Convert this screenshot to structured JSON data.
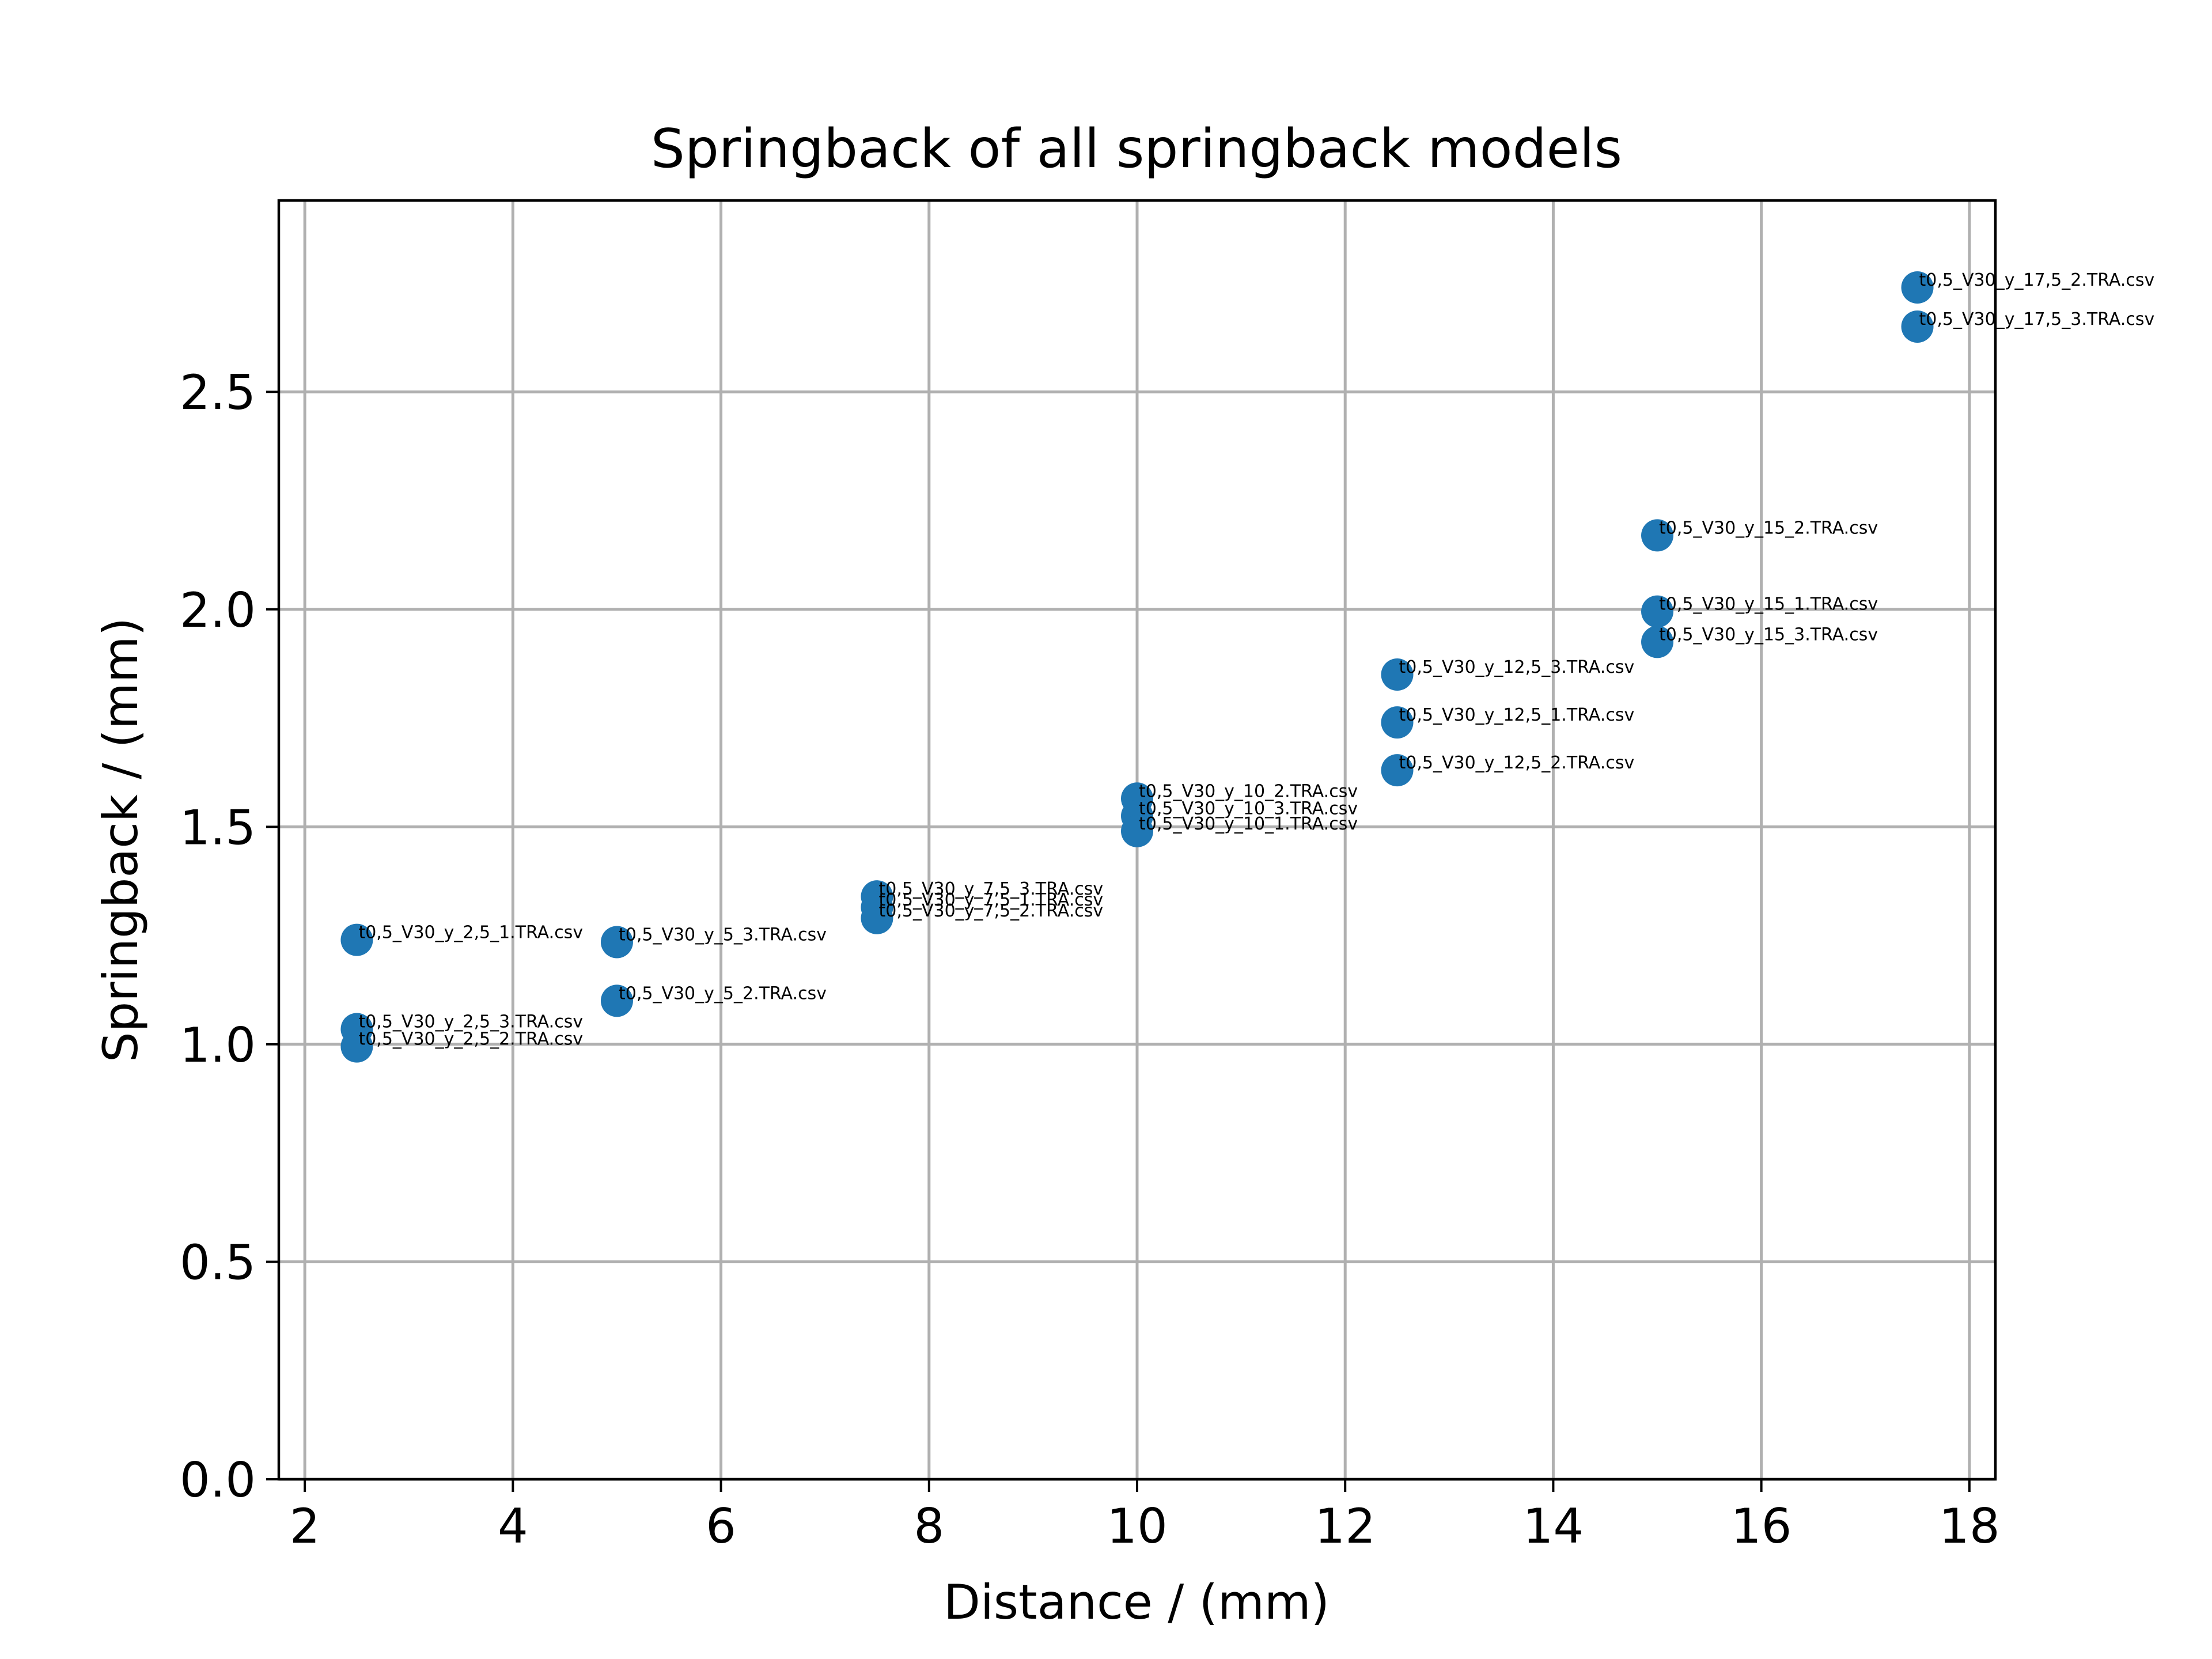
{
  "chart_data": {
    "type": "scatter",
    "title": "Springback of all springback models",
    "xlabel": "Distance / (mm)",
    "ylabel": "Springback / (mm)",
    "xlim": [
      1.75,
      18.25
    ],
    "ylim": [
      0.0,
      2.94
    ],
    "xticks": [
      "2",
      "4",
      "6",
      "8",
      "10",
      "12",
      "14",
      "16",
      "18"
    ],
    "yticks": [
      "0.0",
      "0.5",
      "1.0",
      "1.5",
      "2.0",
      "2.5"
    ],
    "grid": true,
    "legend": "none",
    "marker_color": "#1f77b4",
    "points": [
      {
        "x": 2.5,
        "y": 1.24,
        "label": "t0,5_V30_y_2,5_1.TRA.csv"
      },
      {
        "x": 2.5,
        "y": 1.035,
        "label": "t0,5_V30_y_2,5_3.TRA.csv"
      },
      {
        "x": 2.5,
        "y": 0.995,
        "label": "t0,5_V30_y_2,5_2.TRA.csv"
      },
      {
        "x": 5.0,
        "y": 1.235,
        "label": "t0,5_V30_y_5_3.TRA.csv"
      },
      {
        "x": 5.0,
        "y": 1.1,
        "label": "t0,5_V30_y_5_2.TRA.csv"
      },
      {
        "x": 7.5,
        "y": 1.34,
        "label": "t0,5_V30_y_7,5_3.TRA.csv"
      },
      {
        "x": 7.5,
        "y": 1.315,
        "label": "t0,5_V30_y_7,5_1.TRA.csv"
      },
      {
        "x": 7.5,
        "y": 1.29,
        "label": "t0,5_V30_y_7,5_2.TRA.csv"
      },
      {
        "x": 10.0,
        "y": 1.565,
        "label": "t0,5_V30_y_10_2.TRA.csv"
      },
      {
        "x": 10.0,
        "y": 1.525,
        "label": "t0,5_V30_y_10_3.TRA.csv"
      },
      {
        "x": 10.0,
        "y": 1.49,
        "label": "t0,5_V30_y_10_1.TRA.csv"
      },
      {
        "x": 12.5,
        "y": 1.85,
        "label": "t0,5_V30_y_12,5_3.TRA.csv"
      },
      {
        "x": 12.5,
        "y": 1.74,
        "label": "t0,5_V30_y_12,5_1.TRA.csv"
      },
      {
        "x": 12.5,
        "y": 1.63,
        "label": "t0,5_V30_y_12,5_2.TRA.csv"
      },
      {
        "x": 15.0,
        "y": 2.17,
        "label": "t0,5_V30_y_15_2.TRA.csv"
      },
      {
        "x": 15.0,
        "y": 1.995,
        "label": "t0,5_V30_y_15_1.TRA.csv"
      },
      {
        "x": 15.0,
        "y": 1.925,
        "label": "t0,5_V30_y_15_3.TRA.csv"
      },
      {
        "x": 17.5,
        "y": 2.74,
        "label": "t0,5_V30_y_17,5_2.TRA.csv"
      },
      {
        "x": 17.5,
        "y": 2.65,
        "label": "t0,5_V30_y_17,5_3.TRA.csv"
      }
    ]
  }
}
